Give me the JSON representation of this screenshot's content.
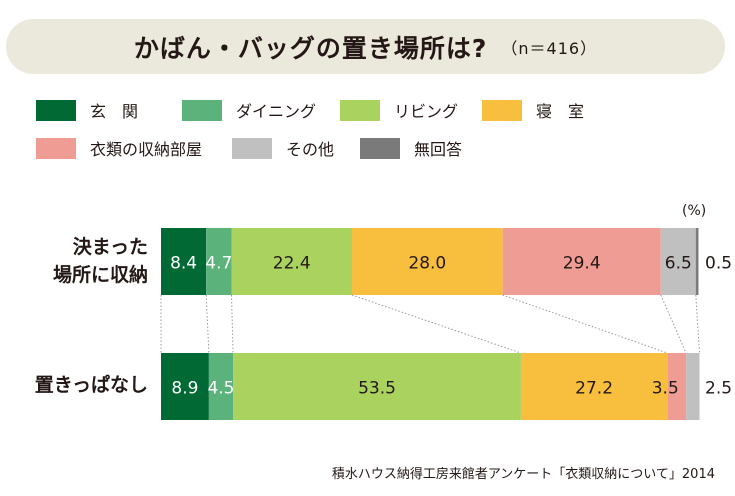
{
  "title": "かばん・バッグの置き場所は?",
  "sample_note": "（n＝416）",
  "unit_label": "(%)",
  "source": "積水ハウス納得工房来館者アンケート「衣類収納について」2014",
  "legend": [
    {
      "label": "玄　関",
      "color": "#006934"
    },
    {
      "label": "ダイニング",
      "color": "#5bb27b"
    },
    {
      "label": "リビング",
      "color": "#a9d25f"
    },
    {
      "label": "寝　室",
      "color": "#f8bf3f"
    },
    {
      "label": "衣類の収納部屋",
      "color": "#ef9d94"
    },
    {
      "label": "その他",
      "color": "#c0c0c0"
    },
    {
      "label": "無回答",
      "color": "#7a7a7a"
    }
  ],
  "rows": [
    {
      "label_line1": "決まった",
      "label_line2": "場所に収納"
    },
    {
      "label_line1": "置きっぱなし",
      "label_line2": ""
    }
  ],
  "chart_data": {
    "type": "bar",
    "orientation": "horizontal",
    "stacked": true,
    "percent": true,
    "unit": "(%)",
    "categories": [
      "決まった場所に収納",
      "置きっぱなし"
    ],
    "series": [
      {
        "name": "玄　関",
        "values": [
          8.4,
          8.9
        ],
        "labels": [
          "8.4",
          "8.9"
        ]
      },
      {
        "name": "ダイニング",
        "values": [
          4.7,
          4.5
        ],
        "labels": [
          "4.7",
          "4.5"
        ]
      },
      {
        "name": "リビング",
        "values": [
          22.4,
          53.5
        ],
        "labels": [
          "22.4",
          "53.5"
        ]
      },
      {
        "name": "寝　室",
        "values": [
          28.0,
          27.2
        ],
        "labels": [
          "28.0",
          "27.2"
        ]
      },
      {
        "name": "衣類の収納部屋",
        "values": [
          29.4,
          3.5
        ],
        "labels": [
          "29.4",
          "3.5"
        ]
      },
      {
        "name": "その他",
        "values": [
          6.5,
          2.5
        ],
        "labels": [
          "6.5",
          "2.5"
        ]
      },
      {
        "name": "無回答",
        "values": [
          0.5,
          0.0
        ],
        "labels": [
          "0.5",
          ""
        ]
      }
    ],
    "xlim": [
      0,
      100
    ],
    "grid": false,
    "legend_position": "top"
  }
}
